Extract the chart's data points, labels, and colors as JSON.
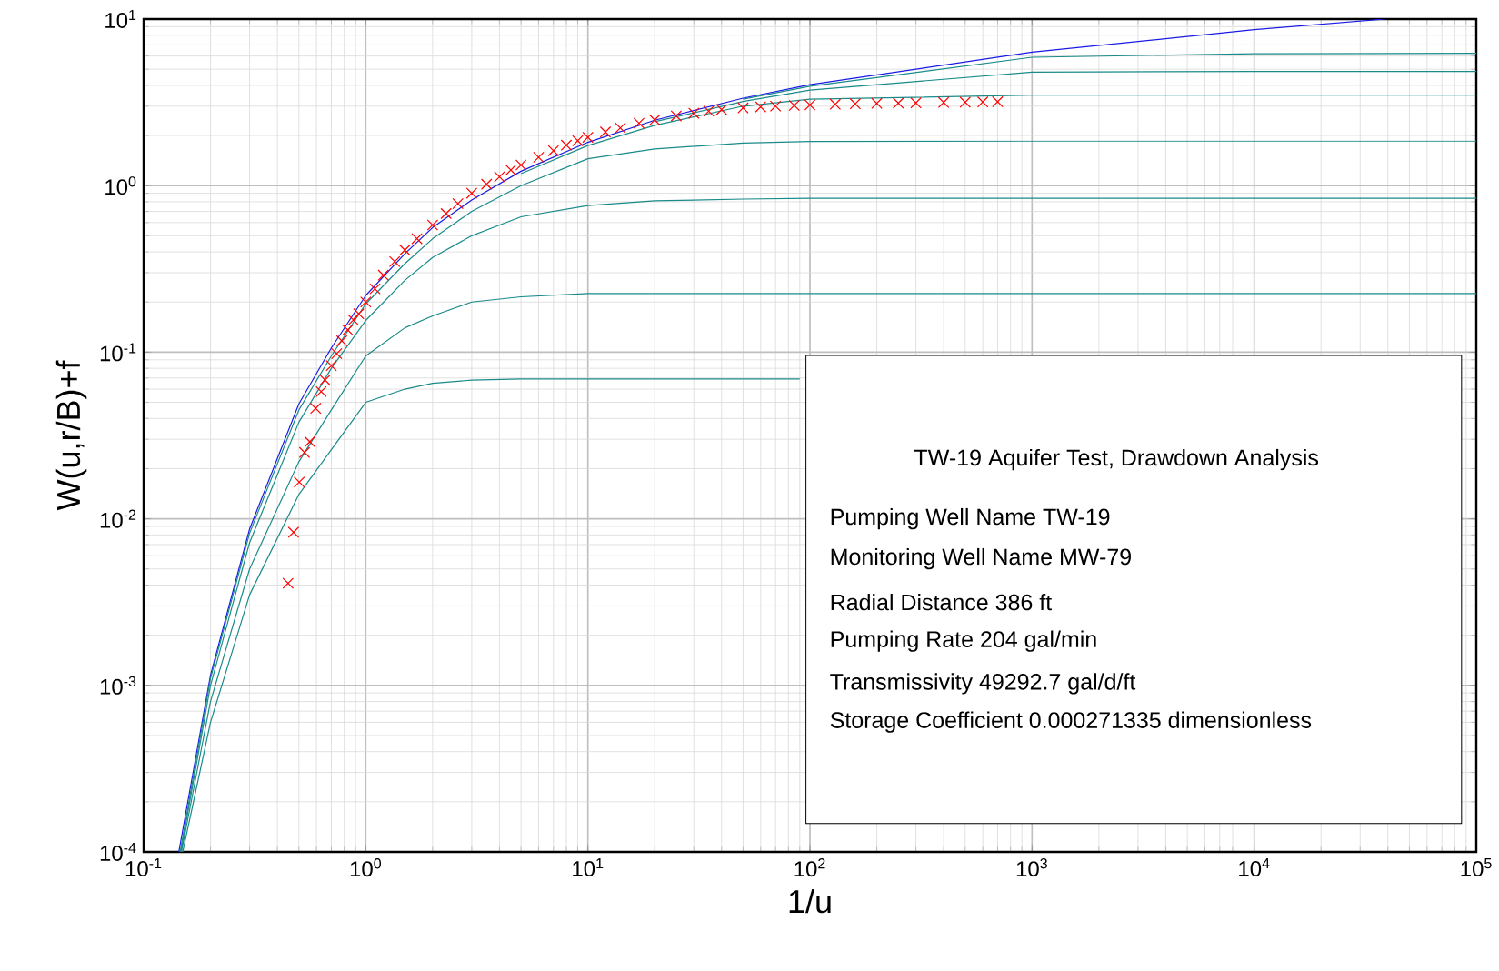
{
  "chart_data": {
    "type": "line",
    "xlabel": "1/u",
    "ylabel": "W(u,r/B)+f",
    "log": "xy",
    "grid": true,
    "xlim": [
      0.1,
      100000
    ],
    "ylim": [
      0.0001,
      10
    ],
    "xticks": [
      {
        "value": 0.1,
        "label": "10$^{-1}$"
      },
      {
        "value": 1,
        "label": "10$^{0}$"
      },
      {
        "value": 10,
        "label": "10$^{1}$"
      },
      {
        "value": 100,
        "label": "10$^{2}$"
      },
      {
        "value": 1000,
        "label": "10$^{3}$"
      },
      {
        "value": 10000,
        "label": "10$^{4}$"
      },
      {
        "value": 100000,
        "label": "10$^{5}$"
      }
    ],
    "yticks": [
      {
        "value": 0.0001,
        "label": "10$^{-4}$"
      },
      {
        "value": 0.001,
        "label": "10$^{-3}$"
      },
      {
        "value": 0.01,
        "label": "10$^{-2}$"
      },
      {
        "value": 0.1,
        "label": "10$^{-1}$"
      },
      {
        "value": 1,
        "label": "10$^{0}$"
      },
      {
        "value": 10,
        "label": "10$^{1}$"
      }
    ],
    "series": [
      {
        "color": "#1a8a8a",
        "x": [
          50,
          100,
          1000,
          10000,
          100000
        ],
        "values": [
          3.3,
          3.95,
          5.9,
          6.2,
          6.23
        ]
      },
      {
        "color": "#1a8a8a",
        "x": [
          20,
          50,
          100,
          1000,
          10000,
          100000
        ],
        "values": [
          2.42,
          3.2,
          3.75,
          4.8,
          4.85,
          4.85
        ]
      },
      {
        "color": "#1a8a8a",
        "x": [
          5,
          10,
          20,
          50,
          100,
          1000,
          100000
        ],
        "values": [
          1.18,
          1.74,
          2.3,
          3.0,
          3.3,
          3.5,
          3.5
        ]
      },
      {
        "color": "#1a1ae6",
        "x": [
          0.144,
          0.2,
          0.3,
          0.5,
          0.7,
          1,
          1.5,
          2,
          3,
          5,
          10,
          20,
          50,
          100,
          1000,
          10000,
          39000
        ],
        "values": [
          0.0001,
          0.00115,
          0.0087,
          0.0489,
          0.106,
          0.219,
          0.39,
          0.56,
          0.82,
          1.22,
          1.82,
          2.47,
          3.35,
          4.04,
          6.33,
          8.63,
          10
        ]
      },
      {
        "color": "#1a8a8a",
        "x": [
          0.146,
          0.2,
          0.3,
          0.5,
          0.7,
          1,
          1.5,
          2,
          3,
          5,
          10,
          20,
          50,
          100,
          1000,
          100000
        ],
        "values": [
          0.0001,
          0.0011,
          0.0082,
          0.045,
          0.095,
          0.195,
          0.34,
          0.48,
          0.7,
          1.0,
          1.45,
          1.66,
          1.8,
          1.84,
          1.85,
          1.85
        ]
      },
      {
        "color": "#1a8a8a",
        "x": [
          0.147,
          0.2,
          0.3,
          0.5,
          0.7,
          1,
          1.5,
          2,
          3,
          5,
          10,
          20,
          50,
          100,
          100000
        ],
        "values": [
          0.0001,
          0.001,
          0.0072,
          0.038,
          0.08,
          0.155,
          0.27,
          0.37,
          0.5,
          0.65,
          0.76,
          0.81,
          0.83,
          0.84,
          0.84
        ]
      },
      {
        "color": "#1a8a8a",
        "x": [
          0.148,
          0.2,
          0.3,
          0.5,
          0.7,
          1,
          1.5,
          2,
          3,
          5,
          10,
          100000
        ],
        "values": [
          0.0001,
          0.0008,
          0.005,
          0.022,
          0.045,
          0.095,
          0.14,
          0.165,
          0.2,
          0.215,
          0.225,
          0.225
        ]
      },
      {
        "color": "#1a8a8a",
        "x": [
          0.15,
          0.2,
          0.3,
          0.5,
          0.7,
          1,
          1.5,
          2,
          3,
          5,
          10,
          90
        ],
        "values": [
          0.0001,
          0.0006,
          0.0035,
          0.014,
          0.026,
          0.05,
          0.06,
          0.065,
          0.068,
          0.069,
          0.069,
          0.069
        ]
      },
      {
        "type": "scatter",
        "marker": "cross",
        "color": "#ff0000",
        "x": [
          0.447,
          0.473,
          0.502,
          0.53,
          0.56,
          0.595,
          0.63,
          0.656,
          0.7,
          0.74,
          0.78,
          0.83,
          0.88,
          0.93,
          1,
          1.1,
          1.2,
          1.35,
          1.5,
          1.7,
          2,
          2.3,
          2.6,
          3,
          3.5,
          4,
          4.5,
          5,
          6,
          7,
          8,
          9,
          10,
          12,
          14,
          17,
          20,
          25,
          30,
          35,
          40,
          50,
          60,
          70,
          85,
          100,
          130,
          160,
          200,
          250,
          300,
          400,
          500,
          600,
          700
        ],
        "values": [
          0.0041,
          0.0083,
          0.0166,
          0.025,
          0.029,
          0.046,
          0.058,
          0.068,
          0.083,
          0.098,
          0.117,
          0.136,
          0.156,
          0.17,
          0.2,
          0.24,
          0.29,
          0.35,
          0.41,
          0.48,
          0.58,
          0.68,
          0.78,
          0.9,
          1.02,
          1.13,
          1.24,
          1.33,
          1.48,
          1.62,
          1.75,
          1.86,
          1.95,
          2.1,
          2.22,
          2.37,
          2.48,
          2.62,
          2.72,
          2.8,
          2.86,
          2.93,
          2.97,
          3.0,
          3.03,
          3.05,
          3.08,
          3.1,
          3.12,
          3.13,
          3.14,
          3.16,
          3.17,
          3.18,
          3.19
        ]
      }
    ],
    "annotations": [
      "TW-19 Aquifer Test, Drawdown Analysis",
      "Pumping Well Name  TW-19",
      "Monitoring Well Name  MW-79",
      "Radial Distance  386  ft",
      "Pumping Rate  204  gal/min",
      "Transmissivity  49292.7  gal/d/ft",
      "Storage Coefficient  0.000271335  dimensionless"
    ]
  }
}
